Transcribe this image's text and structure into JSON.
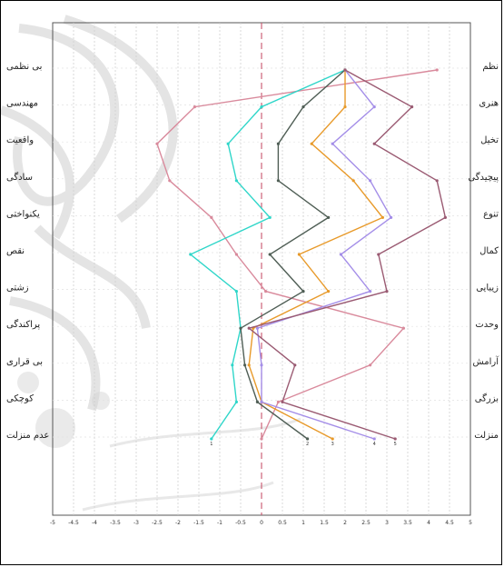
{
  "chart_data": {
    "type": "line",
    "orientation": "horizontal-profile",
    "title": "",
    "xlabel": "",
    "ylabel": "",
    "xlim": [
      -5,
      5
    ],
    "x_ticks": [
      "-5",
      "-4.5",
      "-4",
      "-3.5",
      "-3",
      "-2.5",
      "-2",
      "-1.5",
      "-1",
      "-0.5",
      "0",
      "0.5",
      "1",
      "1.5",
      "2",
      "2.5",
      "3",
      "3.5",
      "4",
      "4.5",
      "5"
    ],
    "grid": true,
    "legend": "none",
    "left_labels": [
      "بی نظمی",
      "مهندسی",
      "واقعیت",
      "سادگی",
      "یکنواختی",
      "نقص",
      "زشتی",
      "پراکندگی",
      "بی قراری",
      "کوچکی",
      "عدم منزلت"
    ],
    "right_labels": [
      "نظم",
      "هنری",
      "تخیل",
      "پیچیدگی",
      "تنوع",
      "کمال",
      "زیبایی",
      "وحدت",
      "آرامش",
      "بزرگی",
      "منزلت"
    ],
    "series": [
      {
        "end_label": "",
        "color": "#d98a9c",
        "values": [
          4.2,
          -1.6,
          -2.5,
          -2.2,
          -1.2,
          -0.6,
          0.1,
          3.4,
          2.6,
          0.4,
          0
        ]
      },
      {
        "end_label": "1",
        "color": "#2fd6c9",
        "values": [
          2.0,
          0,
          -0.8,
          -0.6,
          0.2,
          -1.7,
          -0.6,
          -0.5,
          -0.7,
          -0.6,
          -1.2
        ]
      },
      {
        "end_label": "2",
        "color": "#4f5e55",
        "values": [
          2.0,
          1.0,
          0.4,
          0.4,
          1.6,
          0.2,
          1.0,
          -0.5,
          -0.4,
          -0.1,
          1.1
        ]
      },
      {
        "end_label": "3",
        "color": "#e89a2a",
        "values": [
          2.0,
          2.0,
          1.2,
          2.2,
          2.9,
          0.9,
          1.6,
          -0.2,
          -0.3,
          0,
          1.7
        ]
      },
      {
        "end_label": "4",
        "color": "#a48ee8",
        "values": [
          2.0,
          2.7,
          1.7,
          2.6,
          3.1,
          1.9,
          2.6,
          -0.1,
          0,
          0,
          2.7
        ]
      },
      {
        "end_label": "5",
        "color": "#9a5a72",
        "values": [
          2.0,
          3.6,
          2.7,
          4.2,
          4.4,
          2.8,
          3.0,
          -0.3,
          0.8,
          0.5,
          3.2
        ]
      }
    ]
  }
}
